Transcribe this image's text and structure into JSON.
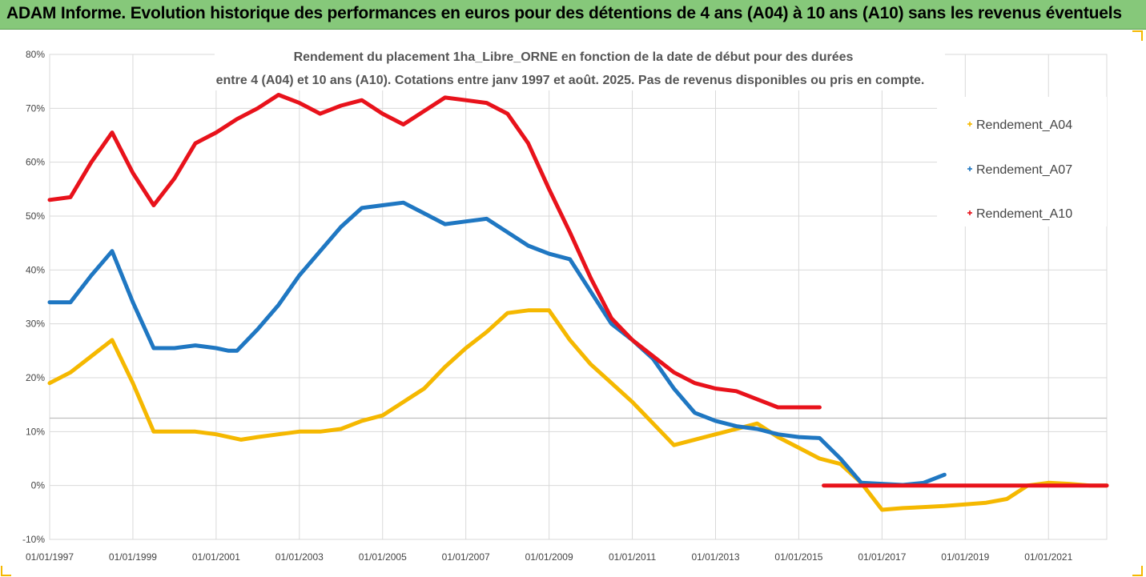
{
  "banner": {
    "title": "ADAM Informe. Evolution historique des performances en euros pour des détentions de 4 ans (A04) à 10 ans (A10) sans les revenus éventuels",
    "background": "#86c87a"
  },
  "chart_data": {
    "type": "line",
    "title_lines": [
      "Rendement du placement 1ha_Libre_ORNE en fonction de la date de début pour des durées",
      "entre 4 (A04) et 10 ans (A10). Cotations entre janv 1997 et août. 2025. Pas de revenus disponibles ou pris en compte."
    ],
    "xlabel": "",
    "ylabel": "",
    "x_ticks": [
      "01/01/1997",
      "01/01/1999",
      "01/01/2001",
      "01/01/2003",
      "01/01/2005",
      "01/01/2007",
      "01/01/2009",
      "01/01/2011",
      "01/01/2013",
      "01/01/2015",
      "01/01/2017",
      "01/01/2019",
      "01/01/2021"
    ],
    "y_ticks": [
      "80%",
      "70%",
      "60%",
      "50%",
      "40%",
      "30%",
      "20%",
      "10%",
      "0%",
      "-10%"
    ],
    "xlim": [
      1997.0,
      2022.4
    ],
    "ylim": [
      -10,
      80
    ],
    "grid": true,
    "legend_position": "right",
    "series": [
      {
        "name": "Rendement_A04",
        "color": "#f5b800",
        "x": [
          1997.0,
          1997.5,
          1998.0,
          1998.5,
          1999.0,
          1999.5,
          2000.0,
          2000.5,
          2001.0,
          2001.3,
          2001.6,
          2002.0,
          2002.5,
          2003.0,
          2003.5,
          2004.0,
          2004.5,
          2005.0,
          2005.5,
          2006.0,
          2006.5,
          2007.0,
          2007.5,
          2008.0,
          2008.5,
          2009.0,
          2009.5,
          2010.0,
          2010.5,
          2011.0,
          2011.5,
          2012.0,
          2012.5,
          2013.0,
          2013.5,
          2014.0,
          2014.5,
          2015.0,
          2015.5,
          2016.0,
          2016.5,
          2017.0,
          2017.5,
          2018.0,
          2018.5,
          2019.0,
          2019.5,
          2020.0,
          2020.5,
          2021.0,
          2021.5,
          2022.0,
          2022.4
        ],
        "values": [
          19,
          21,
          24,
          27,
          19,
          10,
          10,
          10,
          9.5,
          9,
          8.5,
          9,
          9.5,
          10,
          10,
          10.5,
          12,
          13,
          15.5,
          18,
          22,
          25.5,
          28.5,
          32,
          32.5,
          32.5,
          27,
          22.5,
          19,
          15.5,
          11.5,
          7.5,
          8.5,
          9.5,
          10.5,
          11.5,
          9,
          7,
          5,
          4,
          0.5,
          -4.5,
          -4.2,
          -4,
          -3.8,
          -3.5,
          -3.2,
          -2.5,
          0,
          0.5,
          0.3,
          0,
          0
        ]
      },
      {
        "name": "Rendement_A07",
        "color": "#1f77c2",
        "x": [
          1997.0,
          1997.5,
          1998.0,
          1998.5,
          1999.0,
          1999.5,
          2000.0,
          2000.5,
          2001.0,
          2001.3,
          2001.5,
          2002.0,
          2002.5,
          2003.0,
          2003.5,
          2004.0,
          2004.5,
          2005.0,
          2005.5,
          2006.0,
          2006.5,
          2007.0,
          2007.5,
          2008.0,
          2008.5,
          2009.0,
          2009.5,
          2010.0,
          2010.5,
          2011.0,
          2011.5,
          2012.0,
          2012.5,
          2013.0,
          2013.5,
          2014.0,
          2014.5,
          2015.0,
          2015.5,
          2016.0,
          2016.5,
          2017.0,
          2017.5,
          2018.0,
          2018.5
        ],
        "values": [
          34,
          34,
          39,
          43.5,
          34,
          25.5,
          25.5,
          26,
          25.5,
          25,
          25,
          29,
          33.5,
          39,
          43.5,
          48,
          51.5,
          52,
          52.5,
          50.5,
          48.5,
          49,
          49.5,
          47,
          44.5,
          43,
          42,
          36,
          30,
          27,
          23.5,
          18,
          13.5,
          12,
          11,
          10.5,
          9.5,
          9,
          8.8,
          5,
          0.5,
          0.3,
          0.1,
          0.5,
          2
        ]
      },
      {
        "name": "Rendement_A10",
        "color": "#e8121b",
        "x": [
          1997.0,
          1997.5,
          1998.0,
          1998.5,
          1999.0,
          1999.5,
          2000.0,
          2000.5,
          2001.0,
          2001.5,
          2002.0,
          2002.5,
          2003.0,
          2003.5,
          2004.0,
          2004.5,
          2005.0,
          2005.5,
          2006.0,
          2006.5,
          2007.0,
          2007.5,
          2008.0,
          2008.5,
          2009.0,
          2009.5,
          2010.0,
          2010.5,
          2011.0,
          2011.5,
          2012.0,
          2012.5,
          2013.0,
          2013.5,
          2014.0,
          2014.5,
          2015.0,
          2015.5
        ],
        "values": [
          53,
          53.5,
          60,
          65.5,
          58,
          52,
          57,
          63.5,
          65.5,
          68,
          70,
          72.5,
          71,
          69,
          70.5,
          71.5,
          69,
          67,
          69.5,
          72,
          71.5,
          71,
          69,
          63.5,
          55,
          47,
          38.5,
          31,
          27,
          24,
          21,
          19,
          18,
          17.5,
          16,
          14.5,
          14.5,
          14.5
        ]
      },
      {
        "name": "Rendement_A10_tail",
        "color": "#e8121b",
        "x": [
          2015.6,
          2016.5,
          2017.5,
          2018.5,
          2019.5,
          2020.5,
          2021.5,
          2022.4
        ],
        "values": [
          0,
          0,
          0,
          0,
          0,
          0,
          0,
          0
        ]
      }
    ],
    "legend": [
      "Rendement_A04",
      "Rendement_A07",
      "Rendement_A10"
    ],
    "reference_line_value": 12.5
  }
}
